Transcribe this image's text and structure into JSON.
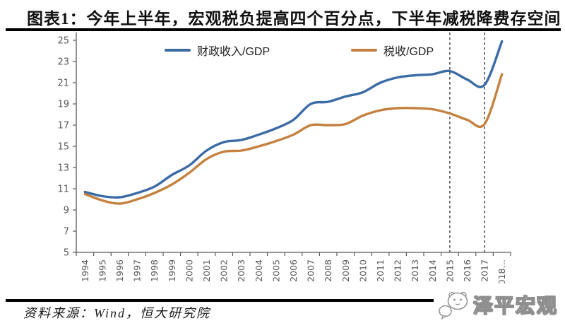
{
  "header": {
    "title": "图表1：今年上半年，宏观税负提高四个百分点，下半年减税降费存空间"
  },
  "footer": {
    "source": "资料来源：Wind，恒大研究院",
    "watermark": "泽平宏观",
    "watermark_icon": "wechat-avatar-icon"
  },
  "colors": {
    "fiscal_line": "#3A6BA5",
    "tax_line": "#C4813F",
    "axis": "#595959",
    "dashed_line": "#2b2b2b",
    "rule": "#000000"
  },
  "chart_data": {
    "type": "line",
    "title": "",
    "xlabel": "",
    "ylabel": "",
    "categories": [
      "1994",
      "1995",
      "1996",
      "1997",
      "1998",
      "1999",
      "2000",
      "2001",
      "2002",
      "2003",
      "2004",
      "2005",
      "2006",
      "2007",
      "2008",
      "2009",
      "2010",
      "2011",
      "2012",
      "2013",
      "2014",
      "2015",
      "2016",
      "2017",
      "2018"
    ],
    "x_last_label_suffix": "…",
    "series": [
      {
        "name": "财政收入/GDP",
        "color": "#3A6BA5",
        "values": [
          10.7,
          10.3,
          10.2,
          10.6,
          11.2,
          12.3,
          13.2,
          14.6,
          15.4,
          15.6,
          16.1,
          16.7,
          17.5,
          19.0,
          19.2,
          19.7,
          20.1,
          21.0,
          21.5,
          21.7,
          21.8,
          22.1,
          21.3,
          20.8,
          24.9
        ]
      },
      {
        "name": "税收/GDP",
        "color": "#C4813F",
        "values": [
          10.5,
          9.9,
          9.6,
          10.0,
          10.6,
          11.4,
          12.5,
          13.8,
          14.5,
          14.6,
          15.0,
          15.5,
          16.1,
          17.0,
          17.0,
          17.1,
          17.9,
          18.4,
          18.6,
          18.6,
          18.5,
          18.1,
          17.5,
          17.1,
          21.8
        ]
      }
    ],
    "ylim": [
      5,
      25
    ],
    "ytick_step": 2,
    "yticks": [
      5,
      7,
      9,
      11,
      13,
      15,
      17,
      19,
      21,
      23,
      25
    ],
    "grid": false,
    "legend_position": "top",
    "dashed_vlines_at": [
      "2015",
      "2017"
    ]
  }
}
